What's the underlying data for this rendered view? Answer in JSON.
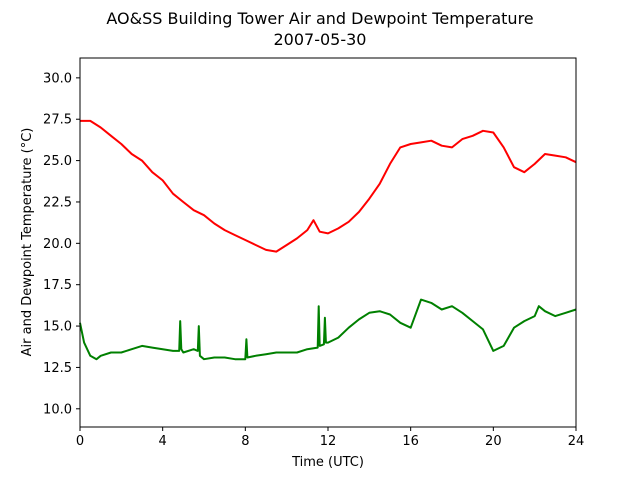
{
  "chart_data": {
    "type": "line",
    "title": "AO&SS Building Tower Air and Dewpoint Temperature",
    "subtitle": "2007-05-30",
    "xlabel": "Time (UTC)",
    "ylabel": "Air and Dewpoint Temperature (°C)",
    "xlim": [
      0,
      24
    ],
    "ylim": [
      8.9,
      31.2
    ],
    "xticks": [
      0,
      4,
      8,
      12,
      16,
      20,
      24
    ],
    "xtick_labels": [
      "0",
      "4",
      "8",
      "12",
      "16",
      "20",
      "24"
    ],
    "yticks": [
      10.0,
      12.5,
      15.0,
      17.5,
      20.0,
      22.5,
      25.0,
      27.5,
      30.0
    ],
    "ytick_labels": [
      "10.0",
      "12.5",
      "15.0",
      "17.5",
      "20.0",
      "22.5",
      "25.0",
      "27.5",
      "30.0"
    ],
    "grid": false,
    "legend": "none",
    "series": [
      {
        "color": "#ff0000",
        "x": [
          0,
          0.5,
          1,
          1.5,
          2,
          2.5,
          3,
          3.5,
          4,
          4.5,
          5,
          5.5,
          6,
          6.5,
          7,
          7.5,
          8,
          8.5,
          9,
          9.5,
          10,
          10.5,
          11,
          11.3,
          11.6,
          12,
          12.5,
          13,
          13.5,
          14,
          14.5,
          15,
          15.5,
          16,
          16.5,
          17,
          17.5,
          18,
          18.5,
          19,
          19.5,
          20,
          20.5,
          21,
          21.5,
          22,
          22.5,
          23,
          23.5,
          24
        ],
        "y": [
          27.4,
          27.4,
          27.0,
          26.5,
          26.0,
          25.4,
          25.0,
          24.3,
          23.8,
          23.0,
          22.5,
          22.0,
          21.7,
          21.2,
          20.8,
          20.5,
          20.2,
          19.9,
          19.6,
          19.5,
          19.9,
          20.3,
          20.8,
          21.4,
          20.7,
          20.6,
          20.9,
          21.3,
          21.9,
          22.7,
          23.6,
          24.8,
          25.8,
          26.0,
          26.1,
          26.2,
          25.9,
          25.8,
          26.3,
          26.5,
          26.8,
          26.7,
          25.8,
          24.6,
          24.3,
          24.8,
          25.4,
          25.3,
          25.2,
          24.9
        ]
      },
      {
        "color": "#008000",
        "x": [
          0,
          0.2,
          0.5,
          0.8,
          1,
          1.5,
          2,
          2.5,
          3,
          3.5,
          4,
          4.5,
          4.8,
          4.85,
          4.9,
          5,
          5.5,
          5.7,
          5.75,
          5.8,
          6,
          6.5,
          7,
          7.5,
          8,
          8.05,
          8.1,
          8.5,
          9,
          9.5,
          10,
          10.5,
          11,
          11.5,
          11.55,
          11.6,
          11.8,
          11.85,
          11.9,
          12,
          12.5,
          13,
          13.5,
          14,
          14.5,
          15,
          15.5,
          16,
          16.5,
          17,
          17.5,
          18,
          18.5,
          19,
          19.5,
          20,
          20.5,
          21,
          21.5,
          22,
          22.2,
          22.5,
          23,
          23.5,
          24
        ],
        "y": [
          15.2,
          14.0,
          13.2,
          13.0,
          13.2,
          13.4,
          13.4,
          13.6,
          13.8,
          13.7,
          13.6,
          13.5,
          13.5,
          15.3,
          13.6,
          13.4,
          13.6,
          13.5,
          15.0,
          13.2,
          13.0,
          13.1,
          13.1,
          13.0,
          13.0,
          14.2,
          13.1,
          13.2,
          13.3,
          13.4,
          13.4,
          13.4,
          13.6,
          13.7,
          16.2,
          13.8,
          13.9,
          15.5,
          14.0,
          14.0,
          14.3,
          14.9,
          15.4,
          15.8,
          15.9,
          15.7,
          15.2,
          14.9,
          16.6,
          16.4,
          16.0,
          16.2,
          15.8,
          15.3,
          14.8,
          13.5,
          13.8,
          14.9,
          15.3,
          15.6,
          16.2,
          15.9,
          15.6,
          15.8,
          16.0
        ]
      }
    ]
  }
}
